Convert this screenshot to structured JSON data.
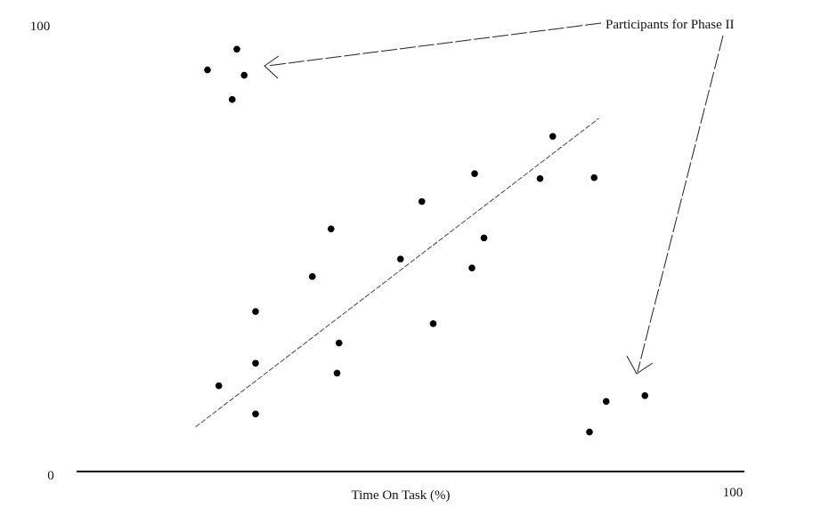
{
  "chart_data": {
    "type": "scatter",
    "title": "",
    "xlabel": "Time On Task (%)",
    "ylabel": "",
    "xlim": [
      0,
      100
    ],
    "ylim": [
      0,
      100
    ],
    "x_tick_labels": [
      "100"
    ],
    "y_tick_labels": [
      "100",
      "0"
    ],
    "grid": false,
    "legend": "none",
    "annotation": "Participants for Phase II",
    "colors": {
      "points": "#000000",
      "axis": "#000000",
      "trend": "#444444"
    },
    "series": [
      {
        "points": [
          {
            "x": 19.6,
            "y": 89.4
          },
          {
            "x": 24.0,
            "y": 94.0
          },
          {
            "x": 25.1,
            "y": 88.2
          },
          {
            "x": 23.3,
            "y": 82.8
          },
          {
            "x": 21.3,
            "y": 19.1
          },
          {
            "x": 26.8,
            "y": 24.1
          },
          {
            "x": 26.8,
            "y": 35.6
          },
          {
            "x": 26.8,
            "y": 12.8
          },
          {
            "x": 35.3,
            "y": 43.4
          },
          {
            "x": 38.1,
            "y": 54.0
          },
          {
            "x": 39.3,
            "y": 28.6
          },
          {
            "x": 39.0,
            "y": 21.9
          },
          {
            "x": 48.5,
            "y": 47.3
          },
          {
            "x": 51.7,
            "y": 60.1
          },
          {
            "x": 53.4,
            "y": 32.9
          },
          {
            "x": 59.2,
            "y": 45.3
          },
          {
            "x": 59.6,
            "y": 66.3
          },
          {
            "x": 61.0,
            "y": 52.0
          },
          {
            "x": 69.4,
            "y": 65.2
          },
          {
            "x": 71.3,
            "y": 74.6
          },
          {
            "x": 77.5,
            "y": 65.4
          },
          {
            "x": 76.8,
            "y": 8.8
          },
          {
            "x": 79.3,
            "y": 15.6
          },
          {
            "x": 85.1,
            "y": 16.9
          }
        ]
      }
    ],
    "trendline": [
      {
        "x": 17.8,
        "y": 9.9
      },
      {
        "x": 78.2,
        "y": 78.6
      }
    ],
    "phase2_points": [
      [
        19.6,
        89.4
      ],
      [
        23.3,
        82.8
      ],
      [
        24.0,
        94.0
      ],
      [
        25.1,
        88.2
      ],
      [
        76.8,
        8.8
      ],
      [
        79.3,
        15.6
      ],
      [
        85.1,
        16.9
      ]
    ]
  }
}
